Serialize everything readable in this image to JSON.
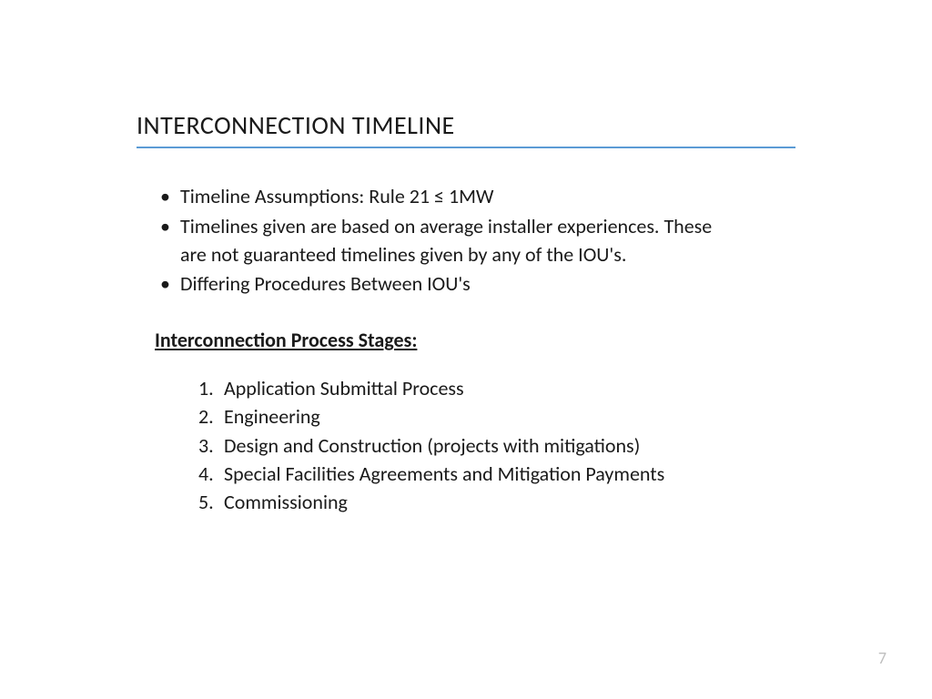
{
  "slide": {
    "title": "INTERCONNECTION TIMELINE",
    "bullets": [
      "Timeline Assumptions: Rule 21 ≤ 1MW",
      "Timelines given are based on average installer experiences. These are not guaranteed timelines given by any of the IOU's.",
      "Differing Procedures Between IOU's"
    ],
    "section_heading": "Interconnection Process Stages:",
    "stages": [
      "Application Submittal Process",
      "Engineering",
      "Design and Construction (projects with mitigations)",
      "Special Facilities Agreements and Mitigation Payments",
      "Commissioning"
    ],
    "page_number": "7"
  },
  "colors": {
    "title_underline": "#5b9bd5",
    "text": "#1a1a1a",
    "page_number": "#bfbfbf",
    "background": "#ffffff"
  },
  "typography": {
    "title_fontsize": 28,
    "body_fontsize": 22,
    "font_family": "Calibri"
  }
}
